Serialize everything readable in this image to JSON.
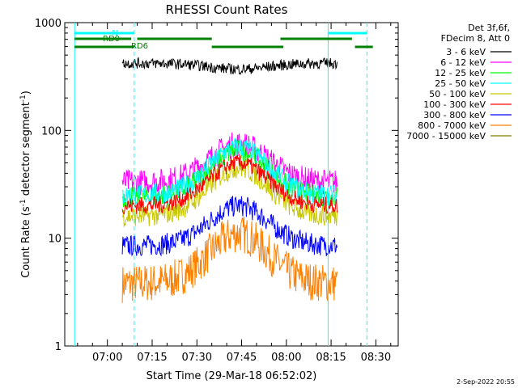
{
  "chart_data": {
    "type": "line",
    "title": "RHESSI Count Rates",
    "xlabel": "Start Time (29-Mar-18 06:52:02)",
    "ylabel_parts": [
      "Count Rate (s",
      "-1",
      " detector segment",
      "-1",
      ")"
    ],
    "yscale": "log",
    "ylim": [
      1,
      1000
    ],
    "xlim_min": [
      -12,
      37
    ],
    "x_ticks": [
      {
        "t": 0,
        "label": "07:00"
      },
      {
        "t": 15,
        "label": "07:15"
      },
      {
        "t": 30,
        "label": "07:30"
      },
      {
        "t": 45,
        "label": "07:45"
      },
      {
        "t": 60,
        "label": "08:00"
      },
      {
        "t": 75,
        "label": "08:15"
      },
      {
        "t": 90,
        "label": "08:30"
      }
    ],
    "y_ticks": [
      {
        "v": 1,
        "label": "1"
      },
      {
        "v": 10,
        "label": "10"
      },
      {
        "v": 100,
        "label": "100"
      },
      {
        "v": 1000,
        "label": "1000"
      }
    ],
    "data_x_range": [
      5,
      77
    ],
    "peak_t": 44,
    "series": [
      {
        "name": "3 - 6 keV",
        "color": "#000000",
        "base": 420,
        "peak": 370,
        "noise": 0.05
      },
      {
        "name": "6 - 12 keV",
        "color": "#ff00ff",
        "base": 33,
        "peak": 75,
        "noise": 0.12
      },
      {
        "name": "12 - 25 keV",
        "color": "#00ff00",
        "base": 24,
        "peak": 65,
        "noise": 0.1
      },
      {
        "name": "25 - 50 keV",
        "color": "#00ffff",
        "base": 25,
        "peak": 70,
        "noise": 0.1
      },
      {
        "name": "50 - 100 keV",
        "color": "#c8c800",
        "base": 16,
        "peak": 45,
        "noise": 0.1
      },
      {
        "name": "100 - 300 keV",
        "color": "#ff0000",
        "base": 20,
        "peak": 50,
        "noise": 0.08
      },
      {
        "name": "300 - 800 keV",
        "color": "#0000ff",
        "base": 8.5,
        "peak": 20,
        "noise": 0.1
      },
      {
        "name": "800 - 7000 keV",
        "color": "#ff8000",
        "base": 3.8,
        "peak": 11,
        "noise": 0.18
      },
      {
        "name": "7000 - 15000 keV",
        "color": "#808000",
        "base": 1.0,
        "peak": 1.0,
        "noise": 0.0
      }
    ],
    "legend_header": [
      "Det 3f,6f,",
      "FDecim 8, Att 0"
    ],
    "cyan_vlines": [
      -11,
      9,
      74,
      87
    ],
    "cyan_vlines_style": [
      "solid",
      "dashed",
      "solid",
      "dashed"
    ],
    "overlays": {
      "n_label": "N",
      "rd0_label": "RD0",
      "rd6_label": "RD6",
      "n_segments": [
        [
          -11,
          9
        ],
        [
          74,
          87
        ]
      ],
      "rd0_segments": [
        [
          -11,
          8
        ],
        [
          10,
          35
        ],
        [
          58,
          82
        ]
      ],
      "rd6_segments": [
        [
          -11,
          9
        ],
        [
          35,
          59
        ],
        [
          83,
          89
        ]
      ],
      "n_color": "#00ffff",
      "rd_color": "#008000"
    },
    "grid": false,
    "legend_position": "right"
  },
  "footer_date": "2-Sep-2022 20:55"
}
